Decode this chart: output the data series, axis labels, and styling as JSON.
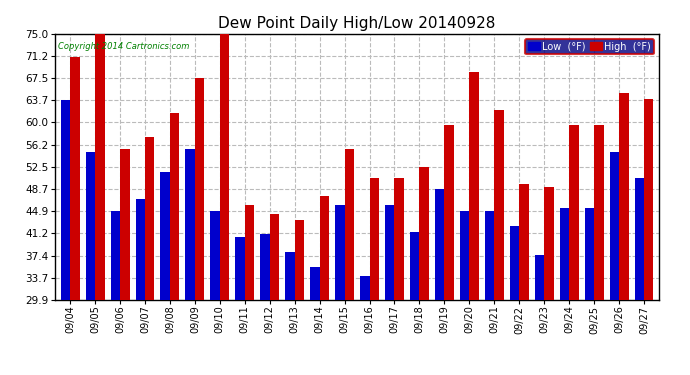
{
  "title": "Dew Point Daily High/Low 20140928",
  "copyright": "Copyright 2014 Cartronics.com",
  "dates": [
    "09/04",
    "09/05",
    "09/06",
    "09/07",
    "09/08",
    "09/09",
    "09/10",
    "09/11",
    "09/12",
    "09/13",
    "09/14",
    "09/15",
    "09/16",
    "09/17",
    "09/18",
    "09/19",
    "09/20",
    "09/21",
    "09/22",
    "09/23",
    "09/24",
    "09/25",
    "09/26",
    "09/27"
  ],
  "low_values": [
    63.7,
    55.0,
    44.9,
    47.0,
    51.5,
    55.5,
    45.0,
    40.5,
    41.0,
    38.0,
    35.5,
    46.0,
    34.0,
    46.0,
    41.5,
    48.7,
    45.0,
    45.0,
    42.5,
    37.5,
    45.5,
    45.5,
    55.0,
    50.5
  ],
  "high_values": [
    71.0,
    75.0,
    55.5,
    57.5,
    61.5,
    67.5,
    75.0,
    46.0,
    44.5,
    43.5,
    47.5,
    55.5,
    50.5,
    50.5,
    52.5,
    59.5,
    68.5,
    62.0,
    49.5,
    49.0,
    59.5,
    59.5,
    65.0,
    64.0
  ],
  "low_color": "#0000cc",
  "high_color": "#cc0000",
  "bg_color": "#ffffff",
  "plot_bg_color": "#ffffff",
  "grid_color": "#bbbbbb",
  "yticks": [
    29.9,
    33.7,
    37.4,
    41.2,
    44.9,
    48.7,
    52.5,
    56.2,
    60.0,
    63.7,
    67.5,
    71.2,
    75.0
  ],
  "ymin": 29.9,
  "ymax": 75.0,
  "bar_width": 0.38,
  "legend_low_label": "Low  (°F)",
  "legend_high_label": "High  (°F)"
}
